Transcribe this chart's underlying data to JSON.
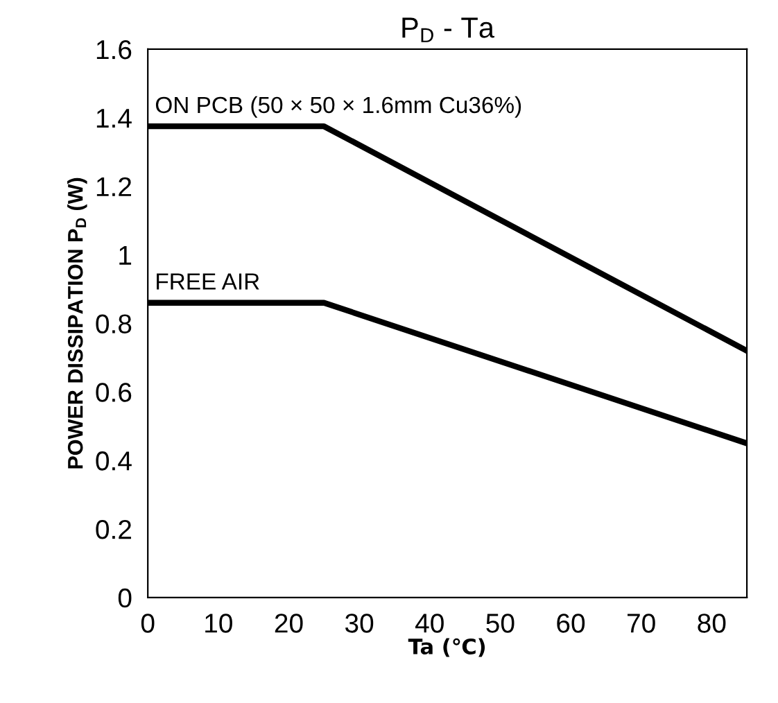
{
  "chart_data": {
    "type": "line",
    "title": "P$_{D}$ - Ta",
    "xlabel": "Ta (℃)",
    "ylabel": "POWER DISSIPATION P$_{D}$ (W)",
    "xlim": [
      0,
      85
    ],
    "xticks": [
      0,
      10,
      20,
      30,
      40,
      50,
      60,
      70,
      80
    ],
    "ylim": [
      0,
      1.6
    ],
    "yticks": [
      0,
      0.2,
      0.4,
      0.6,
      0.8,
      1,
      1.2,
      1.4,
      1.6
    ],
    "grid": false,
    "legend": false,
    "marker": "none",
    "line_style": "solid",
    "series": [
      {
        "name": "ON PCB (50 × 50 × 1.6mm Cu36%)",
        "color": "#000000",
        "x": [
          0,
          25,
          85
        ],
        "values": [
          1.375,
          1.375,
          0.72
        ]
      },
      {
        "name": "FREE AIR",
        "color": "#000000",
        "x": [
          0,
          25,
          85
        ],
        "values": [
          0.86,
          0.86,
          0.45
        ]
      }
    ]
  }
}
